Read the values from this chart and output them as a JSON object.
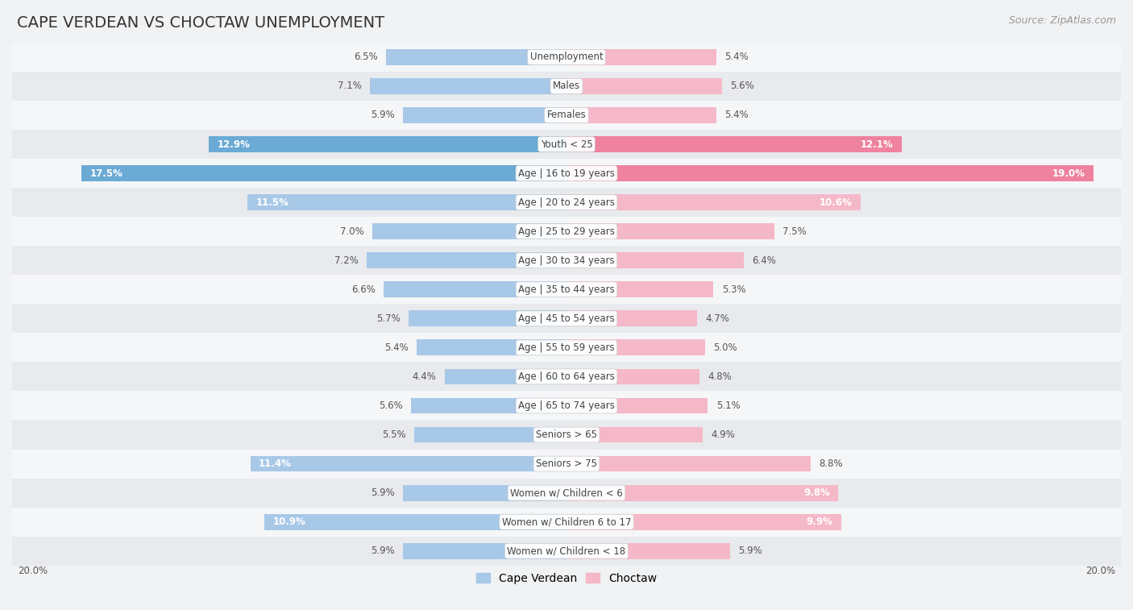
{
  "title": "CAPE VERDEAN VS CHOCTAW UNEMPLOYMENT",
  "source": "Source: ZipAtlas.com",
  "categories": [
    "Unemployment",
    "Males",
    "Females",
    "Youth < 25",
    "Age | 16 to 19 years",
    "Age | 20 to 24 years",
    "Age | 25 to 29 years",
    "Age | 30 to 34 years",
    "Age | 35 to 44 years",
    "Age | 45 to 54 years",
    "Age | 55 to 59 years",
    "Age | 60 to 64 years",
    "Age | 65 to 74 years",
    "Seniors > 65",
    "Seniors > 75",
    "Women w/ Children < 6",
    "Women w/ Children 6 to 17",
    "Women w/ Children < 18"
  ],
  "cape_verdean": [
    6.5,
    7.1,
    5.9,
    12.9,
    17.5,
    11.5,
    7.0,
    7.2,
    6.6,
    5.7,
    5.4,
    4.4,
    5.6,
    5.5,
    11.4,
    5.9,
    10.9,
    5.9
  ],
  "choctaw": [
    5.4,
    5.6,
    5.4,
    12.1,
    19.0,
    10.6,
    7.5,
    6.4,
    5.3,
    4.7,
    5.0,
    4.8,
    5.1,
    4.9,
    8.8,
    9.8,
    9.9,
    5.9
  ],
  "cape_verdean_color_normal": "#a8c8e8",
  "cape_verdean_color_highlight": "#6aaad4",
  "choctaw_color_normal": "#f5b8c8",
  "choctaw_color_highlight": "#ee829f",
  "bg_color": "#f0f2f4",
  "row_bg_even": "#f5f6f8",
  "row_bg_odd": "#e8eaed",
  "axis_limit": 20.0,
  "title_fontsize": 14,
  "source_fontsize": 9,
  "cat_fontsize": 8.5,
  "value_fontsize": 8.5,
  "legend_fontsize": 10,
  "bar_height": 0.55,
  "highlight_rows": [
    3,
    4
  ],
  "value_inside_threshold": 9.0
}
